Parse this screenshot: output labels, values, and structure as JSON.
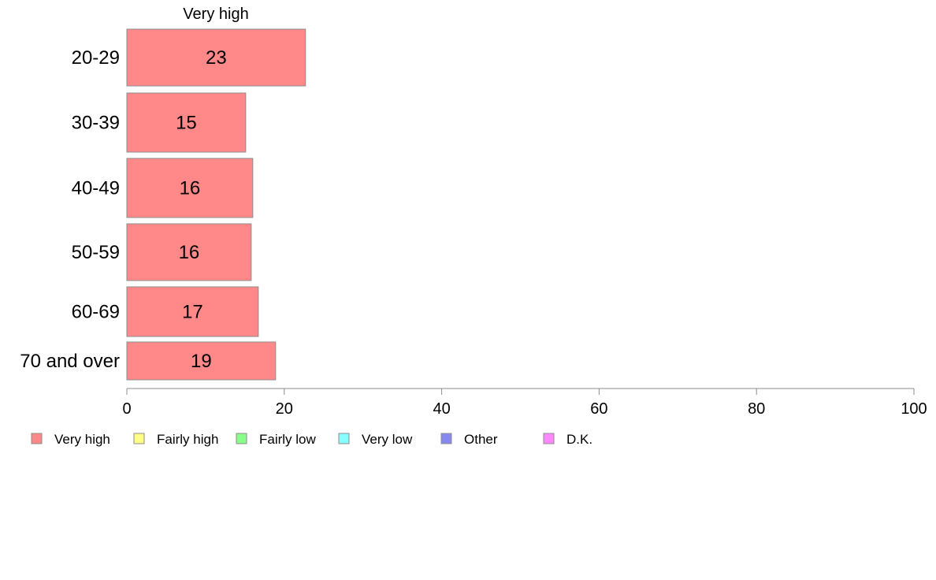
{
  "chart_data": {
    "type": "bar",
    "orientation": "horizontal",
    "title": "Very high",
    "categories": [
      "20-29",
      "30-39",
      "40-49",
      "50-59",
      "60-69",
      "70 and over"
    ],
    "series": [
      {
        "name": "Very high",
        "values": [
          22.7,
          15.1,
          16.0,
          15.8,
          16.7,
          18.9
        ],
        "labels": [
          "23",
          "15",
          "16",
          "16",
          "17",
          "19"
        ],
        "color": "#ff8888"
      }
    ],
    "xlim": [
      0,
      100
    ],
    "xticks": [
      0,
      20,
      40,
      60,
      80,
      100
    ],
    "xlabel": "",
    "ylabel": "",
    "grid": false,
    "legend_position": "bottom",
    "legend": [
      {
        "label": "Very high",
        "color": "#ff8888"
      },
      {
        "label": "Fairly high",
        "color": "#ffff88"
      },
      {
        "label": "Fairly low",
        "color": "#88ff88"
      },
      {
        "label": "Very low",
        "color": "#88ffff"
      },
      {
        "label": "Other",
        "color": "#8888ee"
      },
      {
        "label": "D.K.",
        "color": "#ff88ff"
      }
    ]
  }
}
